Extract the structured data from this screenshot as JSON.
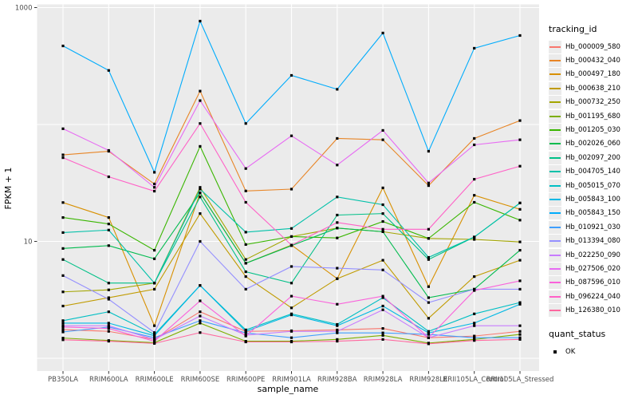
{
  "chart_data": {
    "type": "line",
    "title": "",
    "xlabel": "sample_name",
    "ylabel": "FPKM + 1",
    "y_scale": "log10",
    "ylim": [
      0.77,
      1100
    ],
    "y_tick_labels": [
      "10",
      "1000"
    ],
    "y_tick_values": [
      10,
      1000
    ],
    "y_gridline_values": [
      1,
      10,
      100,
      1000
    ],
    "grid": "on",
    "panel_bg": "#ebebeb",
    "grid_color": "#ffffff",
    "point_color": "#000000",
    "axis_text_color": "#4d4d4d",
    "legend_position": "right",
    "legend_title": "tracking_id",
    "categories": [
      "PB350LA",
      "RRIM600LA",
      "RRIM600LE",
      "RRIM600SE",
      "RRIM600PE",
      "RRIM901LA",
      "RRIM928BA",
      "RRIM928LA",
      "RRIM928LE",
      "RRII105LA_Control",
      "RRII105LA_Stressed"
    ],
    "series": [
      {
        "name": "Hb_000009_580",
        "color": "#F8766D",
        "values": [
          1.76,
          1.7,
          1.45,
          2.5,
          1.7,
          1.72,
          1.75,
          1.8,
          1.5,
          1.55,
          1.7
        ]
      },
      {
        "name": "Hb_000432_040",
        "color": "#E88526",
        "values": [
          55,
          59,
          31,
          193,
          27,
          28,
          76,
          74,
          30,
          76,
          108
        ]
      },
      {
        "name": "Hb_000497_180",
        "color": "#D89000",
        "values": [
          21.5,
          16,
          1.9,
          26,
          6.5,
          9.3,
          4.8,
          28.7,
          4.1,
          24.8,
          18.8
        ]
      },
      {
        "name": "Hb_000638_210",
        "color": "#C09B00",
        "values": [
          2.8,
          3.3,
          3.9,
          17.3,
          5.0,
          2.7,
          4.8,
          6.9,
          2.2,
          5.0,
          6.9
        ]
      },
      {
        "name": "Hb_000732_250",
        "color": "#A3A500",
        "values": [
          3.7,
          3.85,
          4.4,
          29,
          7.0,
          11,
          13,
          12.1,
          10.6,
          10.4,
          9.9
        ]
      },
      {
        "name": "Hb_001195_680",
        "color": "#7CAE00",
        "values": [
          1.49,
          1.42,
          1.36,
          2.0,
          1.4,
          1.4,
          1.45,
          1.57,
          1.35,
          1.45,
          1.6
        ]
      },
      {
        "name": "Hb_001205_030",
        "color": "#39B600",
        "values": [
          16,
          14.1,
          8.4,
          65,
          9.4,
          11,
          10.7,
          14.8,
          10.6,
          21.6,
          15.2
        ]
      },
      {
        "name": "Hb_002026_060",
        "color": "#00BB4E",
        "values": [
          8.7,
          9.2,
          7.1,
          26,
          6.5,
          9.2,
          13,
          12.1,
          3.3,
          3.9,
          8.4
        ]
      },
      {
        "name": "Hb_002097_200",
        "color": "#00C087",
        "values": [
          7.0,
          4.4,
          4.4,
          24,
          5.5,
          4.4,
          16.8,
          17.3,
          7.0,
          10.9,
          21.3
        ]
      },
      {
        "name": "Hb_004705_140",
        "color": "#00C1A9",
        "values": [
          11.9,
          12.5,
          4.4,
          28,
          12,
          12.9,
          24,
          20.6,
          7.3,
          10.9,
          21.3
        ]
      },
      {
        "name": "Hb_005015_070",
        "color": "#00BFC4",
        "values": [
          2.1,
          2.5,
          1.6,
          4.2,
          1.75,
          2.4,
          1.95,
          3.3,
          1.7,
          2.4,
          3.0
        ]
      },
      {
        "name": "Hb_005843_100",
        "color": "#00B8E5",
        "values": [
          2.0,
          2.0,
          1.56,
          4.2,
          1.7,
          2.35,
          1.9,
          2.8,
          1.65,
          2.0,
          2.9
        ]
      },
      {
        "name": "Hb_005843_150",
        "color": "#00ACFC",
        "values": [
          470,
          290,
          39,
          766,
          102,
          263,
          200,
          606,
          59,
          449,
          577
        ]
      },
      {
        "name": "Hb_010921_030",
        "color": "#3F9EFF",
        "values": [
          1.68,
          1.85,
          1.5,
          2.1,
          1.65,
          1.5,
          1.65,
          1.65,
          1.6,
          1.5,
          1.5
        ]
      },
      {
        "name": "Hb_013394_080",
        "color": "#9590FF",
        "values": [
          5.1,
          3.2,
          1.66,
          10,
          3.9,
          6.1,
          5.9,
          5.7,
          3.0,
          3.9,
          3.9
        ]
      },
      {
        "name": "Hb_022250_090",
        "color": "#C77CFF",
        "values": [
          1.9,
          1.9,
          1.45,
          2.3,
          1.58,
          1.7,
          1.7,
          2.6,
          1.5,
          1.9,
          1.9
        ]
      },
      {
        "name": "Hb_027506_020",
        "color": "#E76BF3",
        "values": [
          92,
          60,
          29,
          160,
          42,
          80,
          45,
          89,
          31.6,
          67,
          74
        ]
      },
      {
        "name": "Hb_087596_010",
        "color": "#FA62DB",
        "values": [
          1.85,
          1.8,
          1.4,
          3.1,
          1.55,
          3.4,
          2.9,
          3.4,
          1.5,
          3.8,
          4.6
        ]
      },
      {
        "name": "Hb_096224_040",
        "color": "#FF61C7",
        "values": [
          52,
          35.7,
          26.9,
          102,
          21.6,
          9.3,
          14.5,
          12.7,
          12.7,
          34,
          44
        ]
      },
      {
        "name": "Hb_126380_010",
        "color": "#FF689F",
        "values": [
          1.44,
          1.4,
          1.34,
          1.66,
          1.38,
          1.38,
          1.4,
          1.45,
          1.33,
          1.42,
          1.45
        ]
      }
    ],
    "legend2_title": "quant_status",
    "legend2_items": [
      {
        "label": "OK",
        "marker": "black-square"
      }
    ]
  }
}
